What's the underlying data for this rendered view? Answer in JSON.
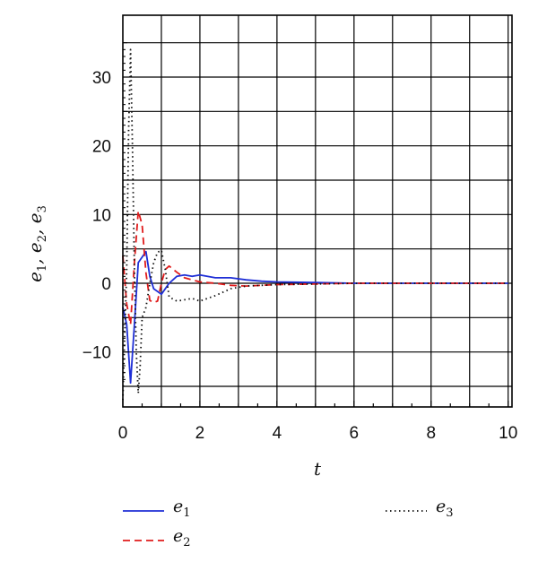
{
  "chart_data": {
    "type": "line",
    "xlabel": "t",
    "ylabel": "e1, e2, e3",
    "xlim": [
      0,
      10.1
    ],
    "ylim": [
      -18,
      39
    ],
    "xticks": [
      0,
      2,
      4,
      6,
      8,
      10
    ],
    "yticks": [
      -10,
      0,
      10,
      20,
      30
    ],
    "xtick_labels": [
      "0",
      "2",
      "4",
      "6",
      "8",
      "10"
    ],
    "ytick_labels": [
      "−10",
      "0",
      "10",
      "20",
      "30"
    ],
    "grid": true,
    "legend_position": "bottom",
    "series": [
      {
        "name": "e1",
        "color": "#1f2fd6",
        "dash": "solid",
        "x": [
          0,
          0.1,
          0.2,
          0.3,
          0.4,
          0.5,
          0.6,
          0.7,
          0.8,
          0.9,
          1.0,
          1.2,
          1.4,
          1.6,
          1.8,
          2.0,
          2.4,
          2.8,
          3.2,
          3.6,
          4.0,
          5.0,
          6.0,
          8.0,
          10.0
        ],
        "y": [
          -3.5,
          -6.0,
          -14.5,
          -6.0,
          3.0,
          3.8,
          4.6,
          1.0,
          -0.8,
          -1.2,
          -1.6,
          0.0,
          1.0,
          1.2,
          1.0,
          1.2,
          0.8,
          0.8,
          0.5,
          0.3,
          0.2,
          0.1,
          0.0,
          0.0,
          0.0
        ]
      },
      {
        "name": "e2",
        "color": "#e01b1b",
        "dash": "8,5",
        "x": [
          0,
          0.1,
          0.2,
          0.3,
          0.4,
          0.5,
          0.6,
          0.7,
          0.8,
          0.9,
          1.0,
          1.1,
          1.2,
          1.4,
          1.6,
          2.0,
          2.4,
          2.8,
          3.2,
          4.0,
          5.0,
          6.0,
          8.0,
          10.0
        ],
        "y": [
          4.0,
          -3.0,
          -6.0,
          3.0,
          10.5,
          8.5,
          1.5,
          -2.5,
          -2.8,
          -2.6,
          0.0,
          2.0,
          2.5,
          1.6,
          0.8,
          0.2,
          0.0,
          -0.3,
          -0.4,
          -0.2,
          -0.1,
          0.0,
          0.0,
          0.0
        ]
      },
      {
        "name": "e3",
        "color": "#111111",
        "dash": "1.5,3.5",
        "x": [
          0,
          0.1,
          0.15,
          0.2,
          0.25,
          0.3,
          0.35,
          0.4,
          0.45,
          0.5,
          0.6,
          0.7,
          0.8,
          0.9,
          1.0,
          1.1,
          1.2,
          1.4,
          1.6,
          1.8,
          2.0,
          2.4,
          2.8,
          3.2,
          4.0,
          5.0,
          6.0,
          8.0,
          10.0
        ],
        "y": [
          -17.0,
          2.0,
          22.0,
          34.0,
          20.0,
          2.0,
          -10.0,
          -16.0,
          -12.0,
          -5.0,
          -3.5,
          0.0,
          3.0,
          4.5,
          4.8,
          2.0,
          -2.0,
          -2.6,
          -2.4,
          -2.2,
          -2.6,
          -1.8,
          -0.8,
          -0.4,
          -0.2,
          -0.1,
          0.0,
          0.0,
          0.0
        ]
      }
    ]
  }
}
